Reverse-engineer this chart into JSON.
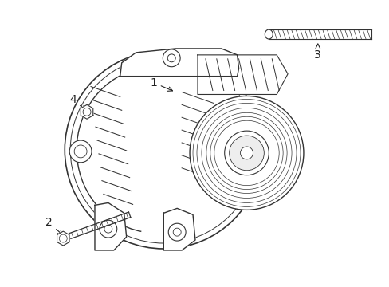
{
  "background_color": "#ffffff",
  "line_color": "#333333",
  "label_color": "#222222",
  "fig_width": 4.89,
  "fig_height": 3.6,
  "dpi": 100
}
